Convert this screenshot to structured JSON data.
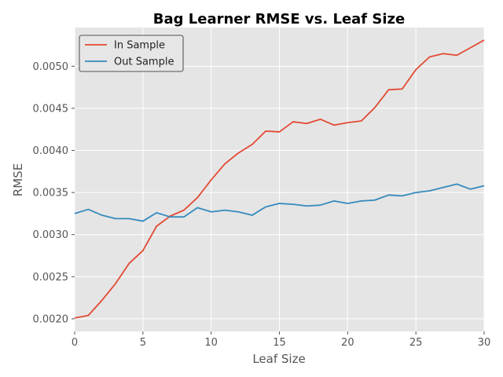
{
  "chart_data": {
    "type": "line",
    "title": "Bag Learner RMSE vs. Leaf Size",
    "xlabel": "Leaf Size",
    "ylabel": "RMSE",
    "xlim": [
      0,
      30
    ],
    "ylim": [
      0.00185,
      0.00546
    ],
    "xticks": [
      0,
      5,
      10,
      15,
      20,
      25,
      30
    ],
    "xtick_labels": [
      "0",
      "5",
      "10",
      "15",
      "20",
      "25",
      "30"
    ],
    "yticks": [
      0.002,
      0.0025,
      0.003,
      0.0035,
      0.004,
      0.0045,
      0.005
    ],
    "ytick_labels": [
      "0.0020",
      "0.0025",
      "0.0030",
      "0.0035",
      "0.0040",
      "0.0045",
      "0.0050"
    ],
    "grid": true,
    "legend_position": "top-left",
    "x": [
      0,
      1,
      2,
      3,
      4,
      5,
      6,
      7,
      8,
      9,
      10,
      11,
      12,
      13,
      14,
      15,
      16,
      17,
      18,
      19,
      20,
      21,
      22,
      23,
      24,
      25,
      26,
      27,
      28,
      29,
      30
    ],
    "series": [
      {
        "name": "In Sample",
        "color": "#e24a33",
        "values": [
          0.00201,
          0.00204,
          0.00222,
          0.00242,
          0.00266,
          0.00281,
          0.0031,
          0.00322,
          0.00329,
          0.00344,
          0.00365,
          0.00384,
          0.00397,
          0.00407,
          0.00423,
          0.00422,
          0.00434,
          0.00432,
          0.00437,
          0.0043,
          0.00433,
          0.00435,
          0.00451,
          0.00472,
          0.00473,
          0.00496,
          0.00511,
          0.00515,
          0.00513,
          0.00522,
          0.00531
        ]
      },
      {
        "name": "Out Sample",
        "color": "#348abd",
        "values": [
          0.00325,
          0.0033,
          0.00323,
          0.00319,
          0.00319,
          0.00316,
          0.00326,
          0.00321,
          0.00321,
          0.00332,
          0.00327,
          0.00329,
          0.00327,
          0.00323,
          0.00333,
          0.00337,
          0.00336,
          0.00334,
          0.00335,
          0.0034,
          0.00337,
          0.0034,
          0.00341,
          0.00347,
          0.00346,
          0.0035,
          0.00352,
          0.00356,
          0.0036,
          0.00354,
          0.00358
        ]
      }
    ]
  },
  "colors": {
    "plot_background": "#e5e5e5",
    "grid": "#ffffff"
  }
}
